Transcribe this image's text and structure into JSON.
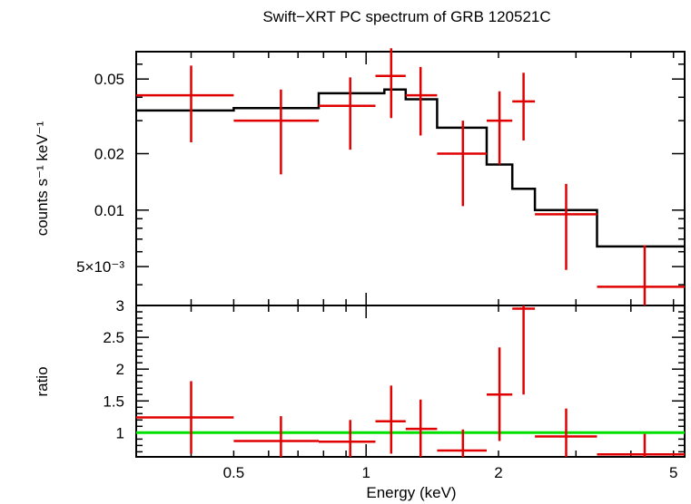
{
  "colors": {
    "data": "#e00000",
    "model": "#000000",
    "unity": "#00e000"
  },
  "chart_data": [
    {
      "panel": "spectrum",
      "type": "line",
      "title": "Swift−XRT PC spectrum of GRB 120521C",
      "ylabel": "counts s⁻¹ keV⁻¹",
      "xlabel": "",
      "xscale": "log",
      "yscale": "log",
      "xlim": [
        0.3,
        5.3
      ],
      "ylim": [
        0.0031,
        0.07
      ],
      "y_ticks": [
        {
          "value": 0.05,
          "label": "0.05"
        },
        {
          "value": 0.02,
          "label": "0.02"
        },
        {
          "value": 0.01,
          "label": "0.01"
        },
        {
          "value": 0.005,
          "label": "5×10⁻³"
        }
      ],
      "model_steps": [
        {
          "x0": 0.3,
          "x1": 0.5,
          "y": 0.034
        },
        {
          "x0": 0.5,
          "x1": 0.78,
          "y": 0.035
        },
        {
          "x0": 0.78,
          "x1": 1.1,
          "y": 0.042
        },
        {
          "x0": 1.1,
          "x1": 1.23,
          "y": 0.044
        },
        {
          "x0": 1.23,
          "x1": 1.45,
          "y": 0.039
        },
        {
          "x0": 1.45,
          "x1": 1.88,
          "y": 0.0275
        },
        {
          "x0": 1.88,
          "x1": 2.15,
          "y": 0.0175
        },
        {
          "x0": 2.15,
          "x1": 2.42,
          "y": 0.013
        },
        {
          "x0": 2.42,
          "x1": 3.35,
          "y": 0.01
        },
        {
          "x0": 3.35,
          "x1": 5.3,
          "y": 0.0064
        }
      ],
      "points": [
        {
          "x": 0.4,
          "xlo": 0.3,
          "xhi": 0.5,
          "y": 0.041,
          "ylo": 0.023,
          "yhi": 0.059
        },
        {
          "x": 0.64,
          "xlo": 0.5,
          "xhi": 0.78,
          "y": 0.03,
          "ylo": 0.0155,
          "yhi": 0.044
        },
        {
          "x": 0.92,
          "xlo": 0.78,
          "xhi": 1.05,
          "y": 0.036,
          "ylo": 0.021,
          "yhi": 0.051
        },
        {
          "x": 1.14,
          "xlo": 1.05,
          "xhi": 1.23,
          "y": 0.052,
          "ylo": 0.031,
          "yhi": 0.073
        },
        {
          "x": 1.33,
          "xlo": 1.23,
          "xhi": 1.45,
          "y": 0.041,
          "ylo": 0.025,
          "yhi": 0.058
        },
        {
          "x": 1.66,
          "xlo": 1.45,
          "xhi": 1.88,
          "y": 0.02,
          "ylo": 0.0105,
          "yhi": 0.03
        },
        {
          "x": 2.01,
          "xlo": 1.88,
          "xhi": 2.15,
          "y": 0.03,
          "ylo": 0.0175,
          "yhi": 0.043
        },
        {
          "x": 2.28,
          "xlo": 2.15,
          "xhi": 2.42,
          "y": 0.038,
          "ylo": 0.0235,
          "yhi": 0.054
        },
        {
          "x": 2.85,
          "xlo": 2.42,
          "xhi": 3.35,
          "y": 0.0095,
          "ylo": 0.0048,
          "yhi": 0.0138
        },
        {
          "x": 4.3,
          "xlo": 3.35,
          "xhi": 5.3,
          "y": 0.0039,
          "ylo": 0.0031,
          "yhi": 0.0065
        }
      ]
    },
    {
      "panel": "ratio",
      "type": "scatter",
      "title": "",
      "ylabel": "ratio",
      "xlabel": "Energy (keV)",
      "xscale": "log",
      "yscale": "linear",
      "xlim": [
        0.3,
        5.3
      ],
      "ylim": [
        0.62,
        3.0
      ],
      "x_ticks": [
        {
          "value": 0.5,
          "label": "0.5"
        },
        {
          "value": 1,
          "label": "1"
        },
        {
          "value": 2,
          "label": "2"
        },
        {
          "value": 5,
          "label": "5"
        }
      ],
      "y_ticks": [
        {
          "value": 3,
          "label": "3"
        },
        {
          "value": 2.5,
          "label": "2.5"
        },
        {
          "value": 2,
          "label": "2"
        },
        {
          "value": 1.5,
          "label": "1.5"
        },
        {
          "value": 1,
          "label": "1"
        }
      ],
      "reference_line": 1.0,
      "points": [
        {
          "x": 0.4,
          "xlo": 0.3,
          "xhi": 0.5,
          "y": 1.24,
          "ylo": 0.67,
          "yhi": 1.81
        },
        {
          "x": 0.64,
          "xlo": 0.5,
          "xhi": 0.78,
          "y": 0.87,
          "ylo": 0.62,
          "yhi": 1.26
        },
        {
          "x": 0.92,
          "xlo": 0.78,
          "xhi": 1.05,
          "y": 0.86,
          "ylo": 0.62,
          "yhi": 1.2
        },
        {
          "x": 1.14,
          "xlo": 1.05,
          "xhi": 1.23,
          "y": 1.18,
          "ylo": 0.67,
          "yhi": 1.74
        },
        {
          "x": 1.33,
          "xlo": 1.23,
          "xhi": 1.45,
          "y": 1.06,
          "ylo": 0.62,
          "yhi": 1.52
        },
        {
          "x": 1.66,
          "xlo": 1.45,
          "xhi": 1.88,
          "y": 0.72,
          "ylo": 0.62,
          "yhi": 1.05
        },
        {
          "x": 2.01,
          "xlo": 1.88,
          "xhi": 2.15,
          "y": 1.6,
          "ylo": 0.87,
          "yhi": 2.34
        },
        {
          "x": 2.28,
          "xlo": 2.15,
          "xhi": 2.42,
          "y": 2.95,
          "ylo": 1.6,
          "yhi": 3.0
        },
        {
          "x": 2.85,
          "xlo": 2.42,
          "xhi": 3.35,
          "y": 0.94,
          "ylo": 0.62,
          "yhi": 1.38
        },
        {
          "x": 4.3,
          "xlo": 3.35,
          "xhi": 5.3,
          "y": 0.66,
          "ylo": 0.62,
          "yhi": 0.98
        }
      ]
    }
  ]
}
